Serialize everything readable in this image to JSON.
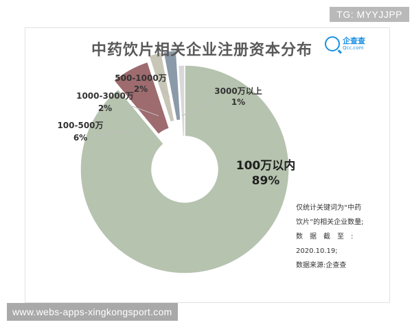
{
  "tag": "TG: MYYJJPP",
  "watermark": "www.webs-apps-xingkongsport.com",
  "brand": {
    "name": "企查查",
    "domain": "Qcc.com",
    "color": "#1a8fe3"
  },
  "note_lines": [
    "仅统计关键词为“中药",
    "饮片”的相关企业数量;",
    "数　据　截　至　:",
    "2020.10.19;",
    "数据来源:企查查"
  ],
  "chart_data": {
    "type": "pie",
    "title": "中药饮片相关企业注册资本分布",
    "donut": true,
    "categories": [
      "100万以内",
      "100-500万",
      "1000-3000万",
      "500-1000万",
      "3000万以上"
    ],
    "values": [
      89,
      6,
      2,
      2,
      1
    ],
    "value_labels": [
      "89%",
      "6%",
      "2%",
      "2%",
      "1%"
    ],
    "colors": [
      "#b6c3af",
      "#9e6b6f",
      "#c8c6b6",
      "#8b9aa8",
      "#d8d8d8"
    ],
    "exploded": [
      false,
      true,
      true,
      true,
      false
    ],
    "grid": false,
    "legend": "none"
  }
}
